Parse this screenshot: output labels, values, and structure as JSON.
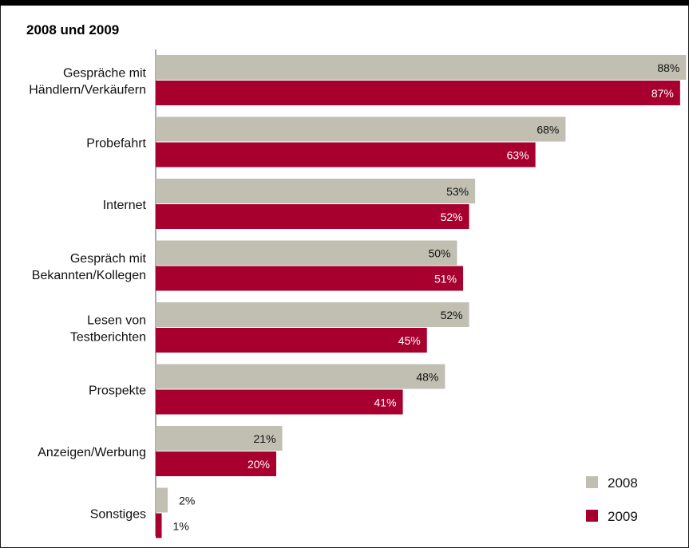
{
  "chart_data": {
    "type": "bar",
    "orientation": "horizontal",
    "title": "2008 und 2009",
    "categories": [
      [
        "Gespräche mit",
        "Händlern/Verkäufern"
      ],
      [
        "Probefahrt"
      ],
      [
        "Internet"
      ],
      [
        "Gespräch mit",
        "Bekannten/Kollegen"
      ],
      [
        "Lesen von",
        "Testberichten"
      ],
      [
        "Prospekte"
      ],
      [
        "Anzeigen/Werbung"
      ],
      [
        "Sonstiges"
      ]
    ],
    "series": [
      {
        "name": "2008",
        "color": "#c0bfb2",
        "label_color": "#111111",
        "values": [
          88,
          68,
          53,
          50,
          52,
          48,
          21,
          2
        ],
        "labels": [
          "88%",
          "68%",
          "53%",
          "50%",
          "52%",
          "48%",
          "21%",
          "2%"
        ]
      },
      {
        "name": "2009",
        "color": "#a8002e",
        "label_color": "#ffffff",
        "values": [
          87,
          63,
          52,
          51,
          45,
          41,
          20,
          1
        ],
        "labels": [
          "87%",
          "63%",
          "52%",
          "51%",
          "45%",
          "41%",
          "20%",
          "1%"
        ]
      }
    ],
    "xlim": [
      0,
      88
    ],
    "grid": false,
    "legend_position": "bottom-right"
  }
}
